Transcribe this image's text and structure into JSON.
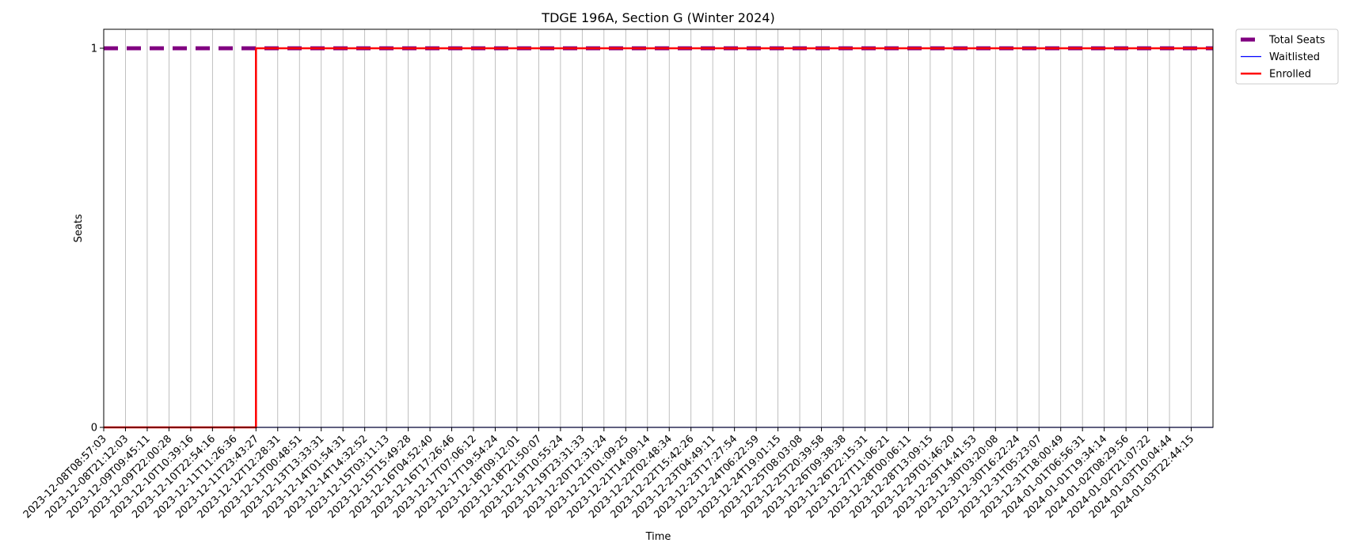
{
  "chart_data": {
    "type": "line",
    "title": "TDGE 196A, Section G (Winter 2024)",
    "xlabel": "Time",
    "ylabel": "Seats",
    "ylim": [
      0,
      1.05
    ],
    "yticks": [
      0,
      1
    ],
    "grid": "vertical",
    "legend_position": "outside-top-right",
    "x": [
      "2023-12-08T08:57:03",
      "2023-12-08T21:12:03",
      "2023-12-09T09:45:11",
      "2023-12-09T22:00:28",
      "2023-12-10T10:39:16",
      "2023-12-10T22:54:16",
      "2023-12-11T11:26:36",
      "2023-12-11T23:43:27",
      "2023-12-12T12:28:31",
      "2023-12-13T00:48:51",
      "2023-12-13T13:33:31",
      "2023-12-14T01:54:31",
      "2023-12-14T14:32:52",
      "2023-12-15T03:11:13",
      "2023-12-15T15:49:28",
      "2023-12-16T04:52:40",
      "2023-12-16T17:26:46",
      "2023-12-17T07:06:12",
      "2023-12-17T19:54:24",
      "2023-12-18T09:12:01",
      "2023-12-18T21:50:07",
      "2023-12-19T10:55:24",
      "2023-12-19T23:31:33",
      "2023-12-20T12:31:24",
      "2023-12-21T01:09:25",
      "2023-12-21T14:09:14",
      "2023-12-22T02:48:34",
      "2023-12-22T15:42:26",
      "2023-12-23T04:49:11",
      "2023-12-23T17:27:54",
      "2023-12-24T06:22:59",
      "2023-12-24T19:01:15",
      "2023-12-25T08:03:08",
      "2023-12-25T20:39:58",
      "2023-12-26T09:38:38",
      "2023-12-26T22:15:31",
      "2023-12-27T11:06:21",
      "2023-12-28T00:06:11",
      "2023-12-28T13:09:15",
      "2023-12-29T01:46:20",
      "2023-12-29T14:41:53",
      "2023-12-30T03:20:08",
      "2023-12-30T16:22:24",
      "2023-12-31T05:23:07",
      "2023-12-31T18:00:49",
      "2024-01-01T06:56:31",
      "2024-01-01T19:34:14",
      "2024-01-02T08:29:56",
      "2024-01-02T21:07:22",
      "2024-01-03T10:04:44",
      "2024-01-03T22:44:15"
    ],
    "series": [
      {
        "name": "Total Seats",
        "color": "#800080",
        "style": "dashed",
        "values": [
          1,
          1,
          1,
          1,
          1,
          1,
          1,
          1,
          1,
          1,
          1,
          1,
          1,
          1,
          1,
          1,
          1,
          1,
          1,
          1,
          1,
          1,
          1,
          1,
          1,
          1,
          1,
          1,
          1,
          1,
          1,
          1,
          1,
          1,
          1,
          1,
          1,
          1,
          1,
          1,
          1,
          1,
          1,
          1,
          1,
          1,
          1,
          1,
          1,
          1,
          1
        ]
      },
      {
        "name": "Waitlisted",
        "color": "#0000ff",
        "style": "solid",
        "values": [
          0,
          0,
          0,
          0,
          0,
          0,
          0,
          0,
          0,
          0,
          0,
          0,
          0,
          0,
          0,
          0,
          0,
          0,
          0,
          0,
          0,
          0,
          0,
          0,
          0,
          0,
          0,
          0,
          0,
          0,
          0,
          0,
          0,
          0,
          0,
          0,
          0,
          0,
          0,
          0,
          0,
          0,
          0,
          0,
          0,
          0,
          0,
          0,
          0,
          0,
          0
        ]
      },
      {
        "name": "Enrolled",
        "color": "#ff0000",
        "style": "solid",
        "values": [
          0,
          0,
          0,
          0,
          0,
          0,
          0,
          1,
          1,
          1,
          1,
          1,
          1,
          1,
          1,
          1,
          1,
          1,
          1,
          1,
          1,
          1,
          1,
          1,
          1,
          1,
          1,
          1,
          1,
          1,
          1,
          1,
          1,
          1,
          1,
          1,
          1,
          1,
          1,
          1,
          1,
          1,
          1,
          1,
          1,
          1,
          1,
          1,
          1,
          1,
          1
        ]
      }
    ]
  }
}
